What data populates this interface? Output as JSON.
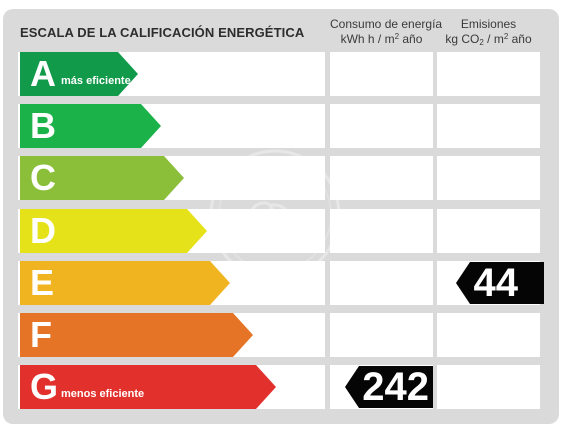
{
  "header": {
    "title": "ESCALA DE LA CALIFICACIÓN ENERGÉTICA",
    "energy_col": {
      "line1": "Consumo de energía",
      "line2_pre": "kWh h  / m",
      "line2_sup": "2",
      "line2_post": " año"
    },
    "emissions_col": {
      "line1": "Emisiones",
      "line2_pre": "kg CO",
      "line2_sub": "2",
      "line2_mid": "  / m",
      "line2_sup": "2",
      "line2_post": " año"
    }
  },
  "scale": [
    {
      "letter": "A",
      "note": "más eficiente",
      "color": "#119A4A"
    },
    {
      "letter": "B",
      "note": "",
      "color": "#1BB24A"
    },
    {
      "letter": "C",
      "note": "",
      "color": "#8BBF3A"
    },
    {
      "letter": "D",
      "note": "",
      "color": "#E5E21A"
    },
    {
      "letter": "E",
      "note": "",
      "color": "#F0B420"
    },
    {
      "letter": "F",
      "note": "",
      "color": "#E57427"
    },
    {
      "letter": "G",
      "note": "menos eficiente",
      "color": "#E2312D"
    }
  ],
  "ratings": {
    "energy": {
      "class": "G",
      "value": "242"
    },
    "emissions": {
      "class": "E",
      "value": "44"
    }
  },
  "colors": {
    "panel": "#DADADA",
    "badge": "#050505"
  }
}
